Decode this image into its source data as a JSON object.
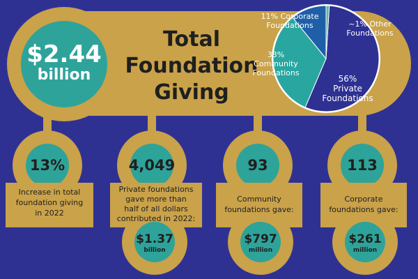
{
  "header": {
    "total_value": "$2.44",
    "total_unit": "billion",
    "title_line1": "Total",
    "title_line2": "Foundation",
    "title_line3": "Giving"
  },
  "stats": [
    {
      "value": "13%",
      "caption_lines": [
        "Increase in total",
        "foundation giving",
        "in 2022"
      ]
    },
    {
      "value": "4,049",
      "caption_lines": [
        "Private foundations",
        "gave more than",
        "half of all dollars",
        "contributed in 2022:"
      ],
      "amount": "$1.37",
      "amount_unit": "billion"
    },
    {
      "value": "93",
      "caption_lines": [
        "Community",
        "foundations gave:"
      ],
      "amount": "$797",
      "amount_unit": "million"
    },
    {
      "value": "113",
      "caption_lines": [
        "Corporate",
        "foundations gave:"
      ],
      "amount": "$261",
      "amount_unit": "million"
    }
  ],
  "pie_labels": {
    "corporate": [
      "11% Corporate",
      "Foundations"
    ],
    "other": [
      "~1% Other",
      "Foundations"
    ],
    "community": [
      "33%",
      "Community",
      "Foundations"
    ],
    "private": [
      "56%",
      "Private",
      "Foundations"
    ]
  },
  "colors": {
    "background": "#2f3192",
    "gold": "#c9a24a",
    "teal": "#2ea39a",
    "private_slice": "#2e3192",
    "community_slice": "#2aa6a0",
    "corporate_slice": "#1f5fa8",
    "other_slice": "#5fb6a8"
  },
  "chart_data": {
    "type": "pie",
    "title": "",
    "categories": [
      "Private Foundations",
      "Community Foundations",
      "Corporate Foundations",
      "Other Foundations"
    ],
    "values": [
      56,
      33,
      11,
      1
    ],
    "value_labels": [
      "56%",
      "33%",
      "11%",
      "~1%"
    ],
    "legend": "none"
  }
}
